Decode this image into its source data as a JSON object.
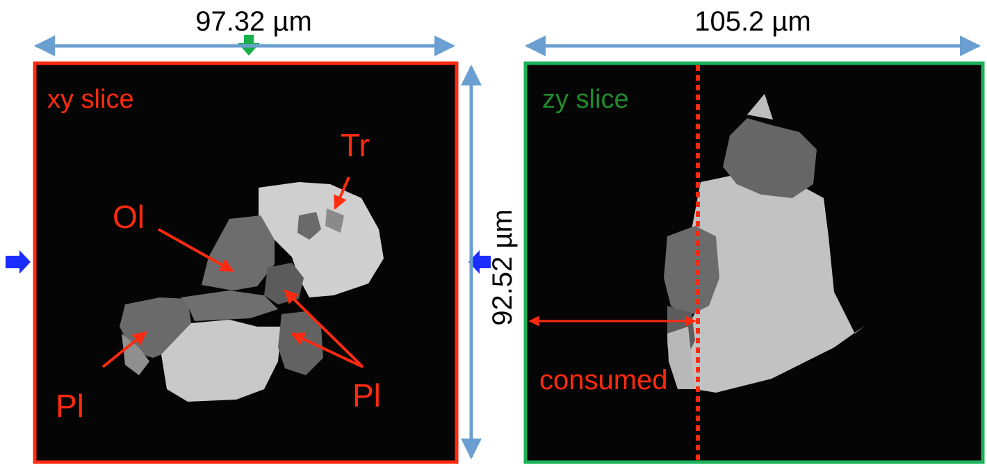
{
  "dimensions": {
    "xy_width": "97.32 µm",
    "zy_width": "105.2 µm",
    "height": "92.52 µm"
  },
  "xy_panel": {
    "title": "xy slice",
    "labels": {
      "tr": "Tr",
      "ol": "Ol",
      "pl_left": "Pl",
      "pl_right": "Pl"
    },
    "border_color": "#ff2a10"
  },
  "zy_panel": {
    "title": "zy slice",
    "label_consumed": "consumed",
    "border_color": "#1bb25a"
  },
  "colors": {
    "dimension_arrow": "#6b9fd1",
    "annotation": "#ff2a10",
    "zy_title": "#1f8c2a",
    "slice_marker_blue": "#1a2cff",
    "slice_marker_green": "#18b04a"
  }
}
